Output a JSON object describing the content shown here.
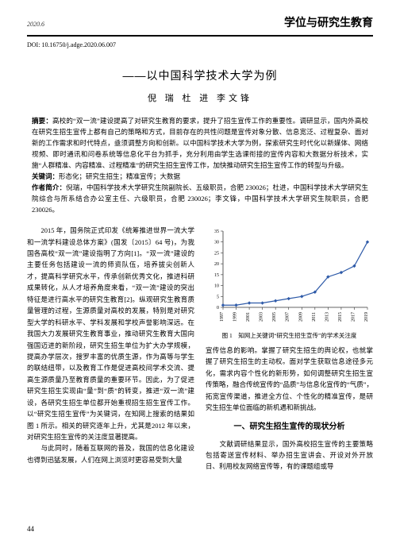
{
  "header": {
    "date": "2020.6",
    "journal": "学位与研究生教育"
  },
  "doi": "DOI: 10.16750/j.adge.2020.06.007",
  "title": "——以中国科学技术大学为例",
  "authors": "倪 瑞  杜 进  李文锋",
  "abstract_label": "摘要：",
  "abstract_text": "高校的“双一流”建设提高了对研究生教育的要求，提升了招生宣传工作的重要性。调研显示，国内外高校在研究生招生宣传上都有自己的策略和方式，目前存在的共性问题是宣传对象分散、信息宽泛、过程复杂、面对新的工作需求和时代特点，亟须调整方向和创新。以中国科学技术大学为例，探索研究生时代化以新媒体、网络视频、即时通讯和问卷系统等信息化平台为抓手，充分利用由学生选课衔接的宣传内容和大数据分析技术，实施“人群精准、内容精准、过程精准”的研究生招生宣传工作，加快推动研究生招生宣传工作的转型与升级。",
  "keywords_label": "关键词：",
  "keywords_text": "形态化；研究生招生；精准宣传；大数据",
  "bio_label": "作者简介：",
  "bio_text": "倪瑞，中国科学技术大学研究生院副院长、五级职员，合肥 230026；杜进，中国科学技术大学研究生院综合与所系结合办公室主任、六级职员，合肥 230026；李文锋，中国科学技术大学研究生院职员，合肥 230026。",
  "body_left": "　　2015 年，国务院正式印发《统筹推进世界一流大学和一流学科建设总体方案》(国发〔2015〕64 号)，为我国各高校“双一流”建设指明了方向[1]。“双一流”建设的主要任务包括建设一流的师资队伍，培养拔尖创新人才，提高科学研究水平，传承创新优秀文化，推进科研成果转化，从人才培养角度来看，“双一流”建设的突出特征是进行高水平的研究生教育[2]。纵观研究生教育质量管理的过程，生源质量对高校的发展，特别是对研究型大学的科研水平、学科发展和学校声誉影响深远。在我国大力发展研究生教育事业，推动研究生教育大国向强国迈进的新阶段，研究生招生单位为扩大办学规模，提高办学层次，搜罗丰富的优质生源，作为高等与学生的联结纽带，以及教育工作是促进高校间学术交流、提高生源质量乃至教育质量的重要环节。因此，为了促进研究生招生实现由“量”到“质”的转变，推进“双一流”建设，各研究生招生单位都开始重视招生招生宣传工作。以“研究生招生宣传”为关键词，在知网上搜索的结果如图 1 所示。相关的研究逐年上升，尤其是2012 年以来，对研究生招生宣传的关注度显著提高。\n　　与此同时，随着互联网的普及，我国的信息化建设也得到迅猛发展，人们在网上浏览时更容易受到大量",
  "body_right_top": "宣传信息的影响。掌握了研究生招生的舆论权，也就掌握了研究生招生的主动权。面对学生获取信息途径多元化，需求内容个性化的新形势，如何调整研究生招生宣传策略，融合传统宣传的“品质”与信息化宣传的“气质”，拓宽宣传渠道，推进全方位、个性化的精准宣传，是研究生招生单位面临的新机遇和新挑战。",
  "section_heading": "一、研究生招生宣传的现状分析",
  "body_right_bottom": "　　文献调研结果显示，国外高校招生宣传的主要策略包括寄送宣传材料、举办招生宣讲会、开设对外开放日、利用校友网络宣传等，有的课题组或导",
  "figure": {
    "type": "line",
    "caption": "图 1　知网上关键词“研究生招生宣传”的学术关注度",
    "categories": [
      "1997",
      "1999",
      "2001",
      "2003",
      "2005",
      "2007",
      "2009",
      "2011",
      "2013",
      "2015",
      "2017",
      "2019"
    ],
    "values": [
      1,
      1,
      2,
      2,
      3,
      4,
      5,
      7,
      14,
      16,
      19,
      30
    ],
    "ylim": [
      0,
      35
    ],
    "ytick_step": 5,
    "line_color": "#2e5aa8",
    "marker_color": "#2e5aa8",
    "marker_size": 2.2,
    "axis_color": "#333333",
    "background_color": "#ffffff",
    "label_fontsize": 6
  },
  "page_number": "44"
}
